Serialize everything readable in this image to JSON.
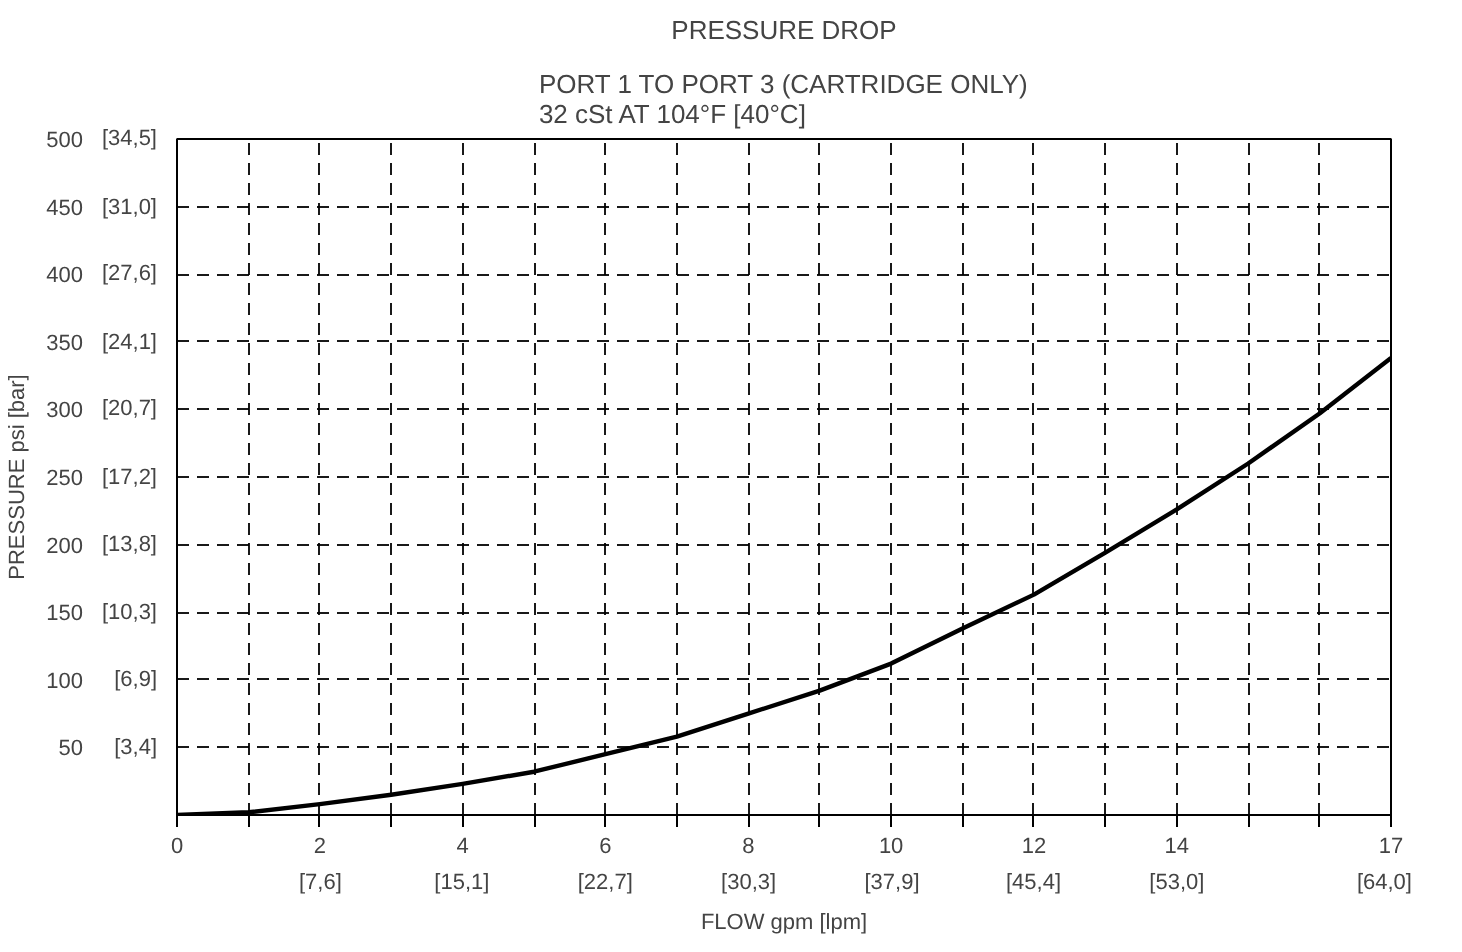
{
  "chart_data": {
    "type": "line",
    "title": "PRESSURE DROP",
    "subtitle": "PORT 1 TO PORT 3 (CARTRIDGE ONLY)\n32 cSt AT 104°F [40°C]",
    "xlabel": "FLOW gpm [lpm]",
    "ylabel": "PRESSURE psi [bar]",
    "x": [
      0,
      1,
      2,
      3,
      4,
      5,
      6,
      7,
      8,
      9,
      10,
      11,
      12,
      13,
      14,
      15,
      16,
      17
    ],
    "series": [
      {
        "color": "#000000",
        "values": [
          0,
          2,
          8,
          15,
          23,
          32,
          45,
          58,
          75,
          92,
          112,
          138,
          163,
          194,
          226,
          260,
          297,
          338
        ]
      }
    ],
    "xlim": [
      0,
      17
    ],
    "ylim": [
      0,
      500
    ],
    "xticks": [
      0,
      {
        "value": 1,
        "label": null
      },
      2,
      {
        "value": 3,
        "label": null
      },
      4,
      {
        "value": 5,
        "label": null
      },
      6,
      {
        "value": 7,
        "label": null
      },
      8,
      {
        "value": 9,
        "label": null
      },
      10,
      {
        "value": 11,
        "label": null
      },
      12,
      {
        "value": 13,
        "label": null
      },
      14,
      {
        "value": 15,
        "label": null
      },
      {
        "value": 16,
        "label": null
      },
      17
    ],
    "yticks": [
      {
        "value": 0,
        "label": null
      },
      50,
      100,
      150,
      200,
      250,
      300,
      350,
      400,
      450,
      500
    ],
    "x2lim": [
      0,
      64.35
    ],
    "x2ticks": [
      {
        "value": 7.6,
        "label": "[7,6]"
      },
      {
        "value": 15.1,
        "label": "[15,1]"
      },
      {
        "value": 22.7,
        "label": "[22,7]"
      },
      {
        "value": 30.3,
        "label": "[30,3]"
      },
      {
        "value": 37.9,
        "label": "[37,9]"
      },
      {
        "value": 45.4,
        "label": "[45,4]"
      },
      {
        "value": 53.0,
        "label": "[53,0]"
      },
      {
        "value": 64.0,
        "label": "[64,0]"
      }
    ],
    "y2lim": [
      0,
      34.5
    ],
    "y2ticks": [
      {
        "value": 3.4,
        "label": "[3,4]"
      },
      {
        "value": 6.9,
        "label": "[6,9]"
      },
      {
        "value": 10.3,
        "label": "[10,3]"
      },
      {
        "value": 13.8,
        "label": "[13,8]"
      },
      {
        "value": 17.2,
        "label": "[17,2]"
      },
      {
        "value": 20.7,
        "label": "[20,7]"
      },
      {
        "value": 24.1,
        "label": "[24,1]"
      },
      {
        "value": 27.6,
        "label": "[27,6]"
      },
      {
        "value": 31.0,
        "label": "[31,0]"
      },
      {
        "value": 34.5,
        "label": "[34,5]"
      }
    ],
    "grid": true,
    "marker": "none",
    "line_style": "solid"
  }
}
